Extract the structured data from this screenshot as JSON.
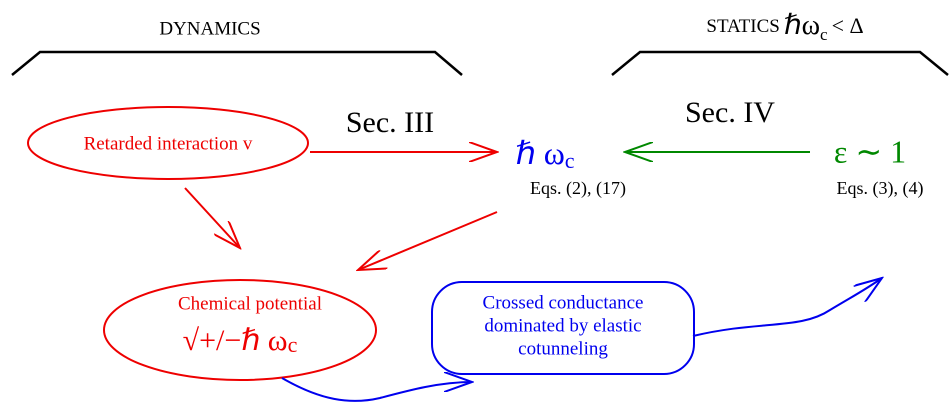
{
  "header": {
    "left": "DYNAMICS",
    "right": {
      "label": "STATICS",
      "symbol": "ℏω",
      "subscript": "c",
      "relation": "< Δ"
    }
  },
  "nodes": [
    {
      "label": "Retarded interaction v"
    },
    {
      "symbol": "ℏ ω",
      "subscript": "c",
      "equations": "Eqs. (2), (17)"
    },
    {
      "symbol": "ε ∼ 1",
      "equations": "Eqs. (3), (4)"
    },
    {
      "label": "Chemical potential",
      "formula": "√+/−ℏ ω",
      "subscript": "c"
    },
    {
      "lines": [
        "Crossed conductance",
        "dominated by elastic",
        "cotunneling"
      ]
    }
  ],
  "edges": [
    {
      "label": "Sec. III"
    },
    {
      "label": "Sec. IV"
    }
  ]
}
